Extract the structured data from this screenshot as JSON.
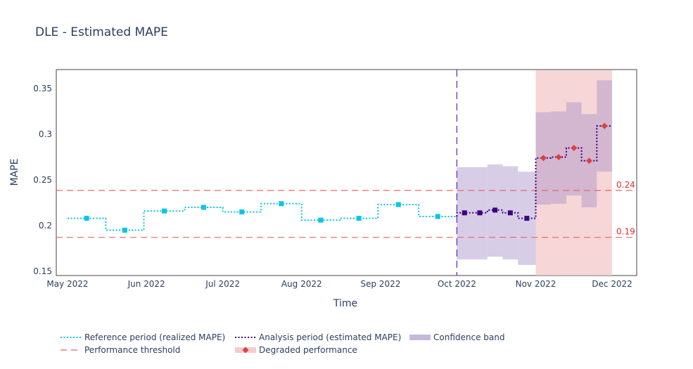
{
  "chart_data": {
    "type": "line",
    "title": "DLE - Estimated MAPE",
    "xlabel": "Time",
    "ylabel": "MAPE",
    "xlim": [
      "2022-05-01",
      "2022-12-01"
    ],
    "ylim": [
      0.146,
      0.371
    ],
    "x_ticks": [
      "May 2022",
      "Jun 2022",
      "Jul 2022",
      "Aug 2022",
      "Sep 2022",
      "Oct 2022",
      "Nov 2022",
      "Dec 2022"
    ],
    "x_tick_dates": [
      "2022-05-01",
      "2022-06-01",
      "2022-07-01",
      "2022-08-01",
      "2022-09-01",
      "2022-10-01",
      "2022-11-01",
      "2022-12-01"
    ],
    "y_ticks": [
      0.15,
      0.2,
      0.25,
      0.3,
      0.35
    ],
    "y_tick_labels": [
      "0.15",
      "0.2",
      "0.25",
      "0.3",
      "0.35"
    ],
    "grid": false,
    "legend_placement": "bottom",
    "colors": {
      "reference": "#00c8e5",
      "analysis": "#3b0280",
      "band": "#c6b8dd",
      "threshold": "#e8605c",
      "degraded": "#f4cccc",
      "degraded_marker": "#dd4040",
      "text": "#2a3f5f"
    },
    "reference": {
      "name": "Reference period (realized MAPE)",
      "chunk_starts": [
        "2022-05-01",
        "2022-05-16",
        "2022-05-31",
        "2022-06-16",
        "2022-07-01",
        "2022-07-16",
        "2022-08-01",
        "2022-08-16",
        "2022-08-31",
        "2022-09-16"
      ],
      "period_end": "2022-10-01",
      "values": [
        0.208,
        0.195,
        0.216,
        0.22,
        0.215,
        0.224,
        0.206,
        0.208,
        0.223,
        0.21
      ]
    },
    "analysis": {
      "name": "Analysis period (estimated MAPE)",
      "chunk_starts": [
        "2022-10-01",
        "2022-10-07",
        "2022-10-13",
        "2022-10-19",
        "2022-10-25",
        "2022-11-01",
        "2022-11-07",
        "2022-11-13",
        "2022-11-19",
        "2022-11-25"
      ],
      "period_end": "2022-12-01",
      "values": [
        0.214,
        0.214,
        0.217,
        0.214,
        0.208,
        0.274,
        0.275,
        0.285,
        0.271,
        0.309
      ],
      "upper": [
        0.264,
        0.264,
        0.267,
        0.265,
        0.259,
        0.324,
        0.325,
        0.335,
        0.322,
        0.359
      ],
      "lower": [
        0.163,
        0.163,
        0.166,
        0.163,
        0.157,
        0.223,
        0.224,
        0.233,
        0.22,
        0.259
      ],
      "degraded": [
        false,
        false,
        false,
        false,
        false,
        true,
        true,
        true,
        true,
        true
      ]
    },
    "thresholds": [
      {
        "value": 0.2385,
        "label": "0.24"
      },
      {
        "value": 0.1872,
        "label": "0.19"
      }
    ],
    "legend": [
      {
        "label": "Reference period (realized MAPE)",
        "style": "dotted-line",
        "color": "#00c8e5"
      },
      {
        "label": "Analysis period (estimated MAPE)",
        "style": "dotted-line",
        "color": "#3b0280"
      },
      {
        "label": "Confidence band",
        "style": "fill",
        "color": "#c6b8dd"
      },
      {
        "label": "Performance threshold",
        "style": "dashed-line",
        "color": "#e8605c"
      },
      {
        "label": "Degraded performance",
        "style": "diamond-fill",
        "color": "#dd4040"
      }
    ]
  }
}
